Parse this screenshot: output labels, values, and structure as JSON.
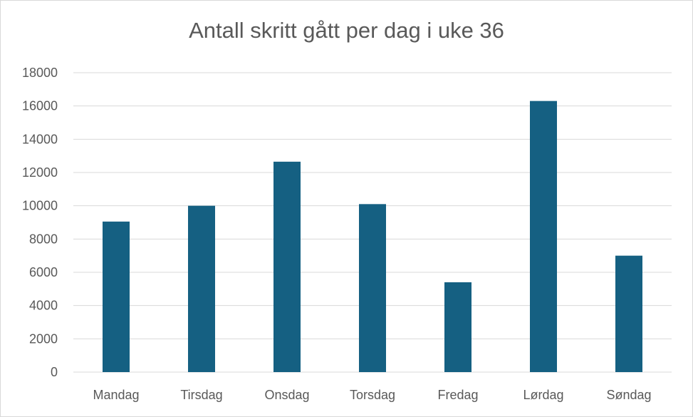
{
  "chart_data": {
    "type": "bar",
    "title": "Antall skritt gått per dag i uke 36",
    "xlabel": "",
    "ylabel": "",
    "categories": [
      "Mandag",
      "Tirsdag",
      "Onsdag",
      "Torsdag",
      "Fredag",
      "Lørdag",
      "Søndag"
    ],
    "values": [
      9050,
      10000,
      12650,
      10100,
      5400,
      16300,
      7000
    ],
    "ylim": [
      0,
      18000
    ],
    "yticks": [
      0,
      2000,
      4000,
      6000,
      8000,
      10000,
      12000,
      14000,
      16000,
      18000
    ],
    "grid": true,
    "legend": "none",
    "bar_color": "#156082",
    "grid_color": "#d9d9d9",
    "text_color": "#595959"
  }
}
